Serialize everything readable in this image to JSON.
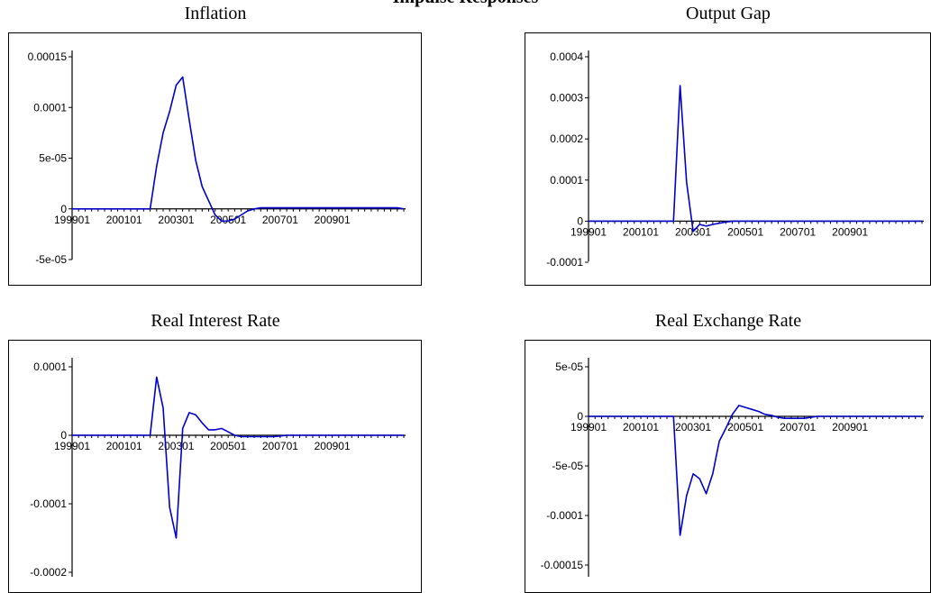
{
  "page_title": "Impulse Responses",
  "chart_data": [
    {
      "type": "line",
      "title": "Inflation",
      "xlabel": "",
      "ylabel": "",
      "x_tick_labels": [
        "199901",
        "200101",
        "200301",
        "200501",
        "200701",
        "200901"
      ],
      "y_tick_labels": [
        "0.00015",
        "0.0001",
        "5e-05",
        "0",
        "-5e-05"
      ],
      "ylim": [
        -0.0001,
        0.000175
      ],
      "grid": false,
      "series": [
        {
          "color": "#0000cc",
          "x": [
            1999.0,
            1999.25,
            1999.5,
            1999.75,
            2000.0,
            2000.25,
            2000.5,
            2000.75,
            2001.0,
            2001.25,
            2001.5,
            2001.75,
            2002.0,
            2002.25,
            2002.5,
            2002.75,
            2003.0,
            2003.25,
            2003.5,
            2003.75,
            2004.0,
            2004.25,
            2004.5,
            2004.75,
            2005.0,
            2005.25,
            2005.5,
            2005.75,
            2006.0,
            2006.25,
            2006.5,
            2006.75,
            2007.0,
            2007.25,
            2007.5,
            2007.75,
            2008.0,
            2008.25,
            2008.5,
            2008.75,
            2009.0,
            2009.25,
            2009.5,
            2009.75,
            2010.0,
            2010.25,
            2010.5,
            2010.75,
            2011.0,
            2011.25,
            2011.5,
            2011.75
          ],
          "y": [
            0,
            0,
            0,
            0,
            0,
            0,
            0,
            0,
            0,
            0,
            0,
            0,
            0,
            4.2e-05,
            7.5e-05,
            9.6e-05,
            0.000122,
            0.00013,
            8.8e-05,
            4.8e-05,
            2.2e-05,
            8e-06,
            -6e-06,
            -1.2e-05,
            -1.2e-05,
            -1e-05,
            -6e-06,
            -2e-06,
            0,
            1e-06,
            1e-06,
            1e-06,
            1e-06,
            1e-06,
            1e-06,
            1e-06,
            1e-06,
            1e-06,
            1e-06,
            1e-06,
            1e-06,
            1e-06,
            1e-06,
            1e-06,
            1e-06,
            1e-06,
            1e-06,
            1e-06,
            1e-06,
            1e-06,
            1e-06,
            0
          ]
        }
      ]
    },
    {
      "type": "line",
      "title": "Output Gap",
      "xlabel": "",
      "ylabel": "",
      "x_tick_labels": [
        "199901",
        "200101",
        "200301",
        "200501",
        "200701",
        "200901"
      ],
      "y_tick_labels": [
        "0.0004",
        "0.0003",
        "0.0002",
        "0.0001",
        "0",
        "-0.0001"
      ],
      "ylim": [
        -0.0002,
        0.00042
      ],
      "grid": false,
      "series": [
        {
          "color": "#0000cc",
          "x": [
            1999.0,
            1999.25,
            1999.5,
            1999.75,
            2000.0,
            2000.25,
            2000.5,
            2000.75,
            2001.0,
            2001.25,
            2001.5,
            2001.75,
            2002.0,
            2002.25,
            2002.5,
            2002.75,
            2003.0,
            2003.25,
            2003.5,
            2003.75,
            2004.0,
            2004.25,
            2004.5,
            2004.75,
            2005.0,
            2005.25,
            2005.5,
            2005.75,
            2006.0,
            2006.25,
            2006.5,
            2006.75,
            2007.0,
            2007.25,
            2007.5,
            2007.75,
            2008.0,
            2008.25,
            2008.5,
            2008.75,
            2009.0,
            2009.25,
            2009.5,
            2009.75,
            2010.0,
            2010.25,
            2010.5,
            2010.75,
            2011.0,
            2011.25,
            2011.5,
            2011.75
          ],
          "y": [
            0,
            0,
            0,
            0,
            0,
            0,
            0,
            0,
            0,
            0,
            0,
            0,
            0,
            0,
            0.00033,
            9.5e-05,
            -2.5e-05,
            -8e-06,
            -1.2e-05,
            -8e-06,
            -5e-06,
            -2e-06,
            0,
            0,
            0,
            0,
            0,
            0,
            0,
            0,
            0,
            0,
            0,
            0,
            0,
            0,
            0,
            0,
            0,
            0,
            0,
            0,
            0,
            0,
            0,
            0,
            0,
            0,
            0,
            0,
            0,
            0
          ]
        }
      ]
    },
    {
      "type": "line",
      "title": "Real Interest Rate",
      "xlabel": "",
      "ylabel": "",
      "x_tick_labels": [
        "199901",
        "200101",
        "200301",
        "200501",
        "200701",
        "200901"
      ],
      "y_tick_labels": [
        "0.0001",
        "0",
        "-0.0001",
        "-0.0002"
      ],
      "ylim": [
        -0.00025,
        0.00015
      ],
      "grid": false,
      "series": [
        {
          "color": "#0000cc",
          "x": [
            1999.0,
            1999.25,
            1999.5,
            1999.75,
            2000.0,
            2000.25,
            2000.5,
            2000.75,
            2001.0,
            2001.25,
            2001.5,
            2001.75,
            2002.0,
            2002.25,
            2002.5,
            2002.75,
            2003.0,
            2003.25,
            2003.5,
            2003.75,
            2004.0,
            2004.25,
            2004.5,
            2004.75,
            2005.0,
            2005.25,
            2005.5,
            2005.75,
            2006.0,
            2006.25,
            2006.5,
            2006.75,
            2007.0,
            2007.25,
            2007.5,
            2007.75,
            2008.0,
            2008.25,
            2008.5,
            2008.75,
            2009.0,
            2009.25,
            2009.5,
            2009.75,
            2010.0,
            2010.25,
            2010.5,
            2010.75,
            2011.0,
            2011.25,
            2011.5,
            2011.75
          ],
          "y": [
            0,
            0,
            0,
            0,
            0,
            0,
            0,
            0,
            0,
            0,
            0,
            0,
            0,
            8.5e-05,
            4e-05,
            -0.000105,
            -0.00015,
            1e-05,
            3.3e-05,
            3e-05,
            1.8e-05,
            8e-06,
            8e-06,
            1e-05,
            5e-06,
            0,
            -2e-06,
            -2e-06,
            -2e-06,
            -2e-06,
            -2e-06,
            -2e-06,
            -1e-06,
            0,
            0,
            0,
            0,
            0,
            0,
            0,
            0,
            0,
            0,
            0,
            0,
            0,
            0,
            0,
            0,
            0,
            0,
            0
          ]
        }
      ]
    },
    {
      "type": "line",
      "title": "Real Exchange Rate",
      "xlabel": "",
      "ylabel": "",
      "x_tick_labels": [
        "199901",
        "200101",
        "200301",
        "200501",
        "200701",
        "200901"
      ],
      "y_tick_labels": [
        "5e-05",
        "0",
        "-5e-05",
        "-0.0001",
        "-0.00015"
      ],
      "ylim": [
        -0.00019,
        7e-05
      ],
      "grid": false,
      "series": [
        {
          "color": "#0000cc",
          "x": [
            1999.0,
            1999.25,
            1999.5,
            1999.75,
            2000.0,
            2000.25,
            2000.5,
            2000.75,
            2001.0,
            2001.25,
            2001.5,
            2001.75,
            2002.0,
            2002.25,
            2002.5,
            2002.75,
            2003.0,
            2003.25,
            2003.5,
            2003.75,
            2004.0,
            2004.25,
            2004.5,
            2004.75,
            2005.0,
            2005.25,
            2005.5,
            2005.75,
            2006.0,
            2006.25,
            2006.5,
            2006.75,
            2007.0,
            2007.25,
            2007.5,
            2007.75,
            2008.0,
            2008.25,
            2008.5,
            2008.75,
            2009.0,
            2009.25,
            2009.5,
            2009.75,
            2010.0,
            2010.25,
            2010.5,
            2010.75,
            2011.0,
            2011.25,
            2011.5,
            2011.75
          ],
          "y": [
            0,
            0,
            0,
            0,
            0,
            0,
            0,
            0,
            0,
            0,
            0,
            0,
            0,
            0,
            -0.00012,
            -8e-05,
            -5.8e-05,
            -6.3e-05,
            -7.8e-05,
            -5.8e-05,
            -2.5e-05,
            -1.2e-05,
            2e-06,
            1.1e-05,
            9e-06,
            7e-06,
            5e-06,
            2e-06,
            1e-06,
            -1e-06,
            -2e-06,
            -2e-06,
            -2e-06,
            -2e-06,
            -1e-06,
            0,
            0,
            0,
            0,
            0,
            0,
            0,
            0,
            0,
            0,
            0,
            0,
            0,
            0,
            0,
            0,
            0
          ]
        }
      ]
    }
  ]
}
